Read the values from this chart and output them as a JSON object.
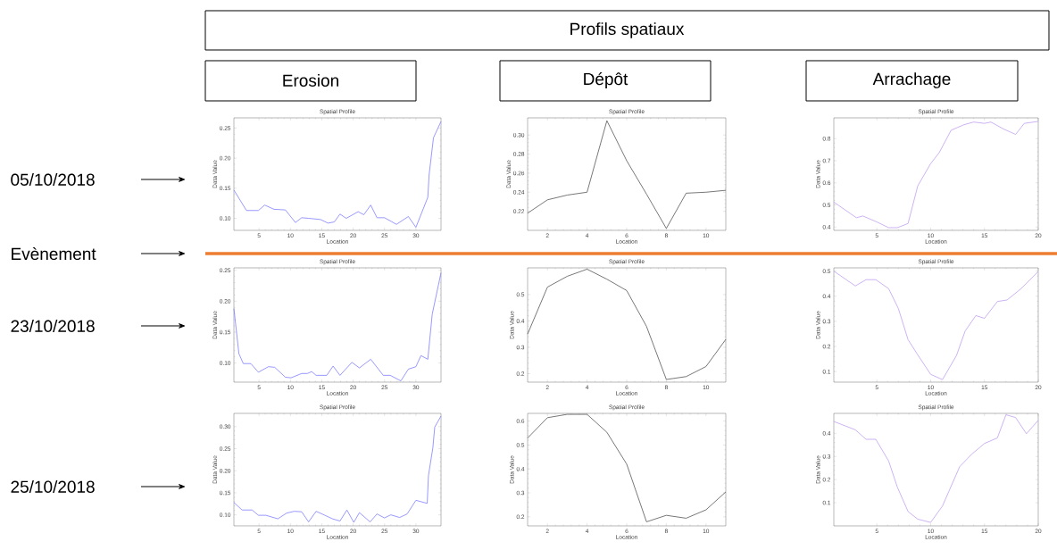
{
  "chart_data": [
    {
      "type": "other",
      "title": "Profils spatiaux",
      "annotations": [
        "Erosion",
        "Dépôt",
        "Arrachage",
        "05/10/2018",
        "Evènement",
        "23/10/2018",
        "25/10/2018"
      ]
    },
    {
      "type": "line",
      "title": "Spatial Profile",
      "xlabel": "Location",
      "ylabel": "Data Value",
      "color": "#7f7fff",
      "xlim": [
        1,
        34
      ],
      "xticks": [
        5,
        10,
        15,
        20,
        25,
        30
      ],
      "ylim": [
        0.08,
        0.267
      ],
      "yticks": [
        {
          "value": 0.1,
          "label": "0.10"
        },
        0.15,
        {
          "value": 0.2,
          "label": "0.20"
        },
        0.25
      ],
      "x": [
        1,
        3,
        4.9,
        5.9,
        7.4,
        9.2,
        10.8,
        11.8,
        12.9,
        14.8,
        16,
        17,
        17.9,
        18.9,
        20.8,
        21.7,
        22.8,
        23.8,
        25,
        26.9,
        28.8,
        30,
        31.9,
        32.1,
        32.8,
        34
      ],
      "values": [
        0.147,
        0.113,
        0.113,
        0.122,
        0.115,
        0.114,
        0.093,
        0.101,
        0.1,
        0.098,
        0.092,
        0.094,
        0.107,
        0.1,
        0.111,
        0.106,
        0.122,
        0.101,
        0.101,
        0.09,
        0.103,
        0.085,
        0.135,
        0.172,
        0.234,
        0.261
      ]
    },
    {
      "type": "line",
      "title": "Spatial Profile",
      "xlabel": "Location",
      "ylabel": "Data Value",
      "color": "#555555",
      "xlim": [
        1,
        11
      ],
      "xticks": [
        2,
        4,
        6,
        8,
        10
      ],
      "ylim": [
        0.2,
        0.318
      ],
      "yticks": [
        0.22,
        0.24,
        0.26,
        0.28,
        {
          "value": 0.3,
          "label": "0.30"
        }
      ],
      "x": [
        1,
        2,
        3,
        4,
        5,
        6,
        7,
        8,
        9,
        10,
        11
      ],
      "values": [
        0.218,
        0.232,
        0.237,
        0.24,
        0.315,
        0.273,
        0.238,
        0.202,
        0.239,
        0.24,
        0.242
      ]
    },
    {
      "type": "line",
      "title": "Spatial Profile",
      "xlabel": "Location",
      "ylabel": "Data Value",
      "color": "#c0a0f0",
      "xlim": [
        1,
        20
      ],
      "xticks": [
        5,
        10,
        15,
        20
      ],
      "ylim": [
        0.385,
        0.894
      ],
      "yticks": [
        0.4,
        0.5,
        0.6,
        0.7,
        0.8
      ],
      "x": [
        1,
        3.1,
        3.7,
        5,
        6.1,
        6.9,
        7.9,
        8.8,
        10,
        10.8,
        11.9,
        13.1,
        14,
        15,
        15.6,
        16.75,
        17.9,
        18.7,
        20
      ],
      "values": [
        0.513,
        0.442,
        0.45,
        0.423,
        0.397,
        0.397,
        0.416,
        0.586,
        0.687,
        0.737,
        0.838,
        0.863,
        0.875,
        0.869,
        0.875,
        0.844,
        0.819,
        0.869,
        0.878
      ]
    },
    {
      "type": "line",
      "title": "Spatial Profile",
      "xlabel": "Location",
      "ylabel": "Data Value",
      "color": "#7f7fff",
      "xlim": [
        1,
        34
      ],
      "xticks": [
        5,
        10,
        15,
        20,
        25,
        30
      ],
      "ylim": [
        0.069,
        0.254
      ],
      "yticks": [
        {
          "value": 0.1,
          "label": "0.10"
        },
        0.15,
        {
          "value": 0.2,
          "label": "0.20"
        },
        0.25
      ],
      "x": [
        1,
        1.8,
        2.5,
        3.7,
        4.9,
        6.5,
        7.5,
        9.2,
        10.1,
        11.8,
        12.7,
        13.4,
        14.1,
        15.8,
        16.8,
        17.9,
        19.8,
        21,
        22.8,
        24.8,
        25.9,
        27.6,
        28.8,
        30,
        30.8,
        31.9,
        32.6,
        34
      ],
      "values": [
        0.188,
        0.115,
        0.099,
        0.099,
        0.085,
        0.094,
        0.093,
        0.077,
        0.076,
        0.083,
        0.083,
        0.086,
        0.08,
        0.08,
        0.095,
        0.08,
        0.101,
        0.092,
        0.106,
        0.08,
        0.08,
        0.071,
        0.09,
        0.094,
        0.112,
        0.106,
        0.179,
        0.246
      ]
    },
    {
      "type": "line",
      "title": "Spatial Profile",
      "xlabel": "Location",
      "ylabel": "Data Value",
      "color": "#555555",
      "xlim": [
        1,
        11
      ],
      "xticks": [
        2,
        4,
        6,
        8,
        10
      ],
      "ylim": [
        0.168,
        0.601
      ],
      "yticks": [
        0.2,
        0.3,
        0.4,
        0.5
      ],
      "x": [
        1,
        2,
        3,
        4,
        5,
        6,
        7,
        8,
        9,
        10,
        11
      ],
      "values": [
        0.35,
        0.528,
        0.569,
        0.596,
        0.558,
        0.515,
        0.379,
        0.178,
        0.189,
        0.227,
        0.33
      ]
    },
    {
      "type": "line",
      "title": "Spatial Profile",
      "xlabel": "Location",
      "ylabel": "Data Value",
      "color": "#c0a0f0",
      "xlim": [
        1,
        20
      ],
      "xticks": [
        5,
        10,
        15,
        20
      ],
      "ylim": [
        0.058,
        0.513
      ],
      "yticks": [
        0.1,
        0.2,
        0.3,
        0.4,
        0.5
      ],
      "x": [
        1,
        3,
        4,
        4.9,
        6.1,
        7,
        7.9,
        8.75,
        10,
        11.1,
        12.4,
        13.2,
        14.2,
        15,
        16.2,
        17.1,
        18.4,
        20
      ],
      "values": [
        0.5,
        0.441,
        0.466,
        0.466,
        0.43,
        0.351,
        0.227,
        0.17,
        0.089,
        0.068,
        0.164,
        0.261,
        0.323,
        0.312,
        0.379,
        0.385,
        0.43,
        0.498
      ]
    },
    {
      "type": "line",
      "title": "Spatial Profile",
      "xlabel": "Location",
      "ylabel": "Data Value",
      "color": "#7f7fff",
      "xlim": [
        1,
        34
      ],
      "xticks": [
        5,
        10,
        15,
        20,
        25,
        30
      ],
      "ylim": [
        0.075,
        0.33
      ],
      "yticks": [
        {
          "value": 0.1,
          "label": "0.10"
        },
        0.15,
        {
          "value": 0.2,
          "label": "0.20"
        },
        0.25,
        {
          "value": 0.3,
          "label": "0.30"
        }
      ],
      "x": [
        1,
        2.3,
        3.9,
        4.9,
        6.1,
        8,
        9.4,
        10.6,
        11.8,
        12.9,
        14.1,
        15.5,
        16.7,
        17.9,
        19,
        20.1,
        21,
        22.7,
        23.8,
        25,
        26,
        27.4,
        28.6,
        30,
        31.8,
        32,
        32.7,
        33,
        34
      ],
      "values": [
        0.128,
        0.111,
        0.111,
        0.099,
        0.099,
        0.091,
        0.104,
        0.108,
        0.107,
        0.084,
        0.108,
        0.099,
        0.091,
        0.086,
        0.111,
        0.083,
        0.105,
        0.084,
        0.102,
        0.093,
        0.1,
        0.094,
        0.102,
        0.133,
        0.126,
        0.189,
        0.252,
        0.299,
        0.324
      ]
    },
    {
      "type": "line",
      "title": "Spatial Profile",
      "xlabel": "Location",
      "ylabel": "Data Value",
      "color": "#555555",
      "xlim": [
        1,
        11
      ],
      "xticks": [
        2,
        4,
        6,
        8,
        10
      ],
      "ylim": [
        0.162,
        0.632
      ],
      "yticks": [
        0.2,
        0.3,
        0.4,
        0.5,
        0.6
      ],
      "x": [
        1,
        2,
        3,
        4,
        5,
        6,
        7,
        8,
        9,
        10,
        11
      ],
      "values": [
        0.529,
        0.614,
        0.628,
        0.628,
        0.553,
        0.42,
        0.179,
        0.206,
        0.194,
        0.229,
        0.304
      ]
    },
    {
      "type": "line",
      "title": "Spatial Profile",
      "xlabel": "Location",
      "ylabel": "Data Value",
      "color": "#c0a0f0",
      "xlim": [
        1,
        20
      ],
      "xticks": [
        5,
        10,
        15,
        20
      ],
      "ylim": [
        0,
        0.486
      ],
      "yticks": [
        0.1,
        0.2,
        0.3,
        0.4
      ],
      "x": [
        1,
        3,
        4,
        4.9,
        6.1,
        6.9,
        7.9,
        8.8,
        10,
        11.1,
        12.7,
        13.8,
        15,
        16.2,
        17,
        17.9,
        18.9,
        20
      ],
      "values": [
        0.451,
        0.415,
        0.374,
        0.374,
        0.28,
        0.168,
        0.062,
        0.029,
        0.015,
        0.086,
        0.256,
        0.309,
        0.356,
        0.38,
        0.48,
        0.468,
        0.398,
        0.456
      ]
    }
  ]
}
